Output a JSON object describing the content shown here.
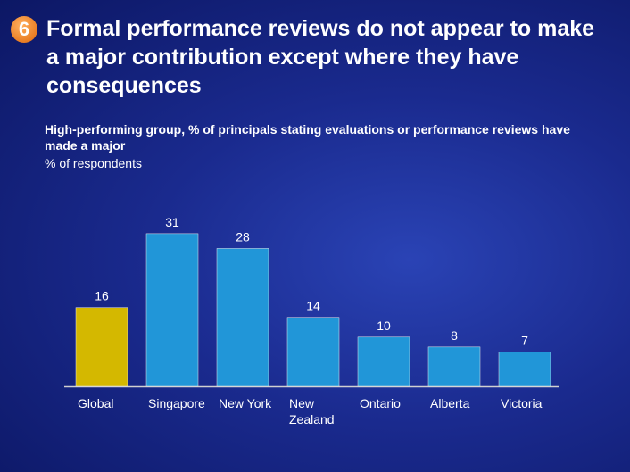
{
  "chart_data": {
    "type": "bar",
    "badge": "6",
    "title": "Formal performance reviews do not appear to make a major contribution except where they have consequences",
    "subtitle": "High-performing group, % of principals stating evaluations or performance reviews have made a major",
    "unit": "% of respondents",
    "categories": [
      "Global",
      "Singapore",
      "New York",
      "New Zealand",
      "Ontario",
      "Alberta",
      "Victoria"
    ],
    "values": [
      16,
      31,
      28,
      14,
      10,
      8,
      7
    ],
    "colors": [
      "#d4b800",
      "#2196d8",
      "#2196d8",
      "#2196d8",
      "#2196d8",
      "#2196d8",
      "#2196d8"
    ]
  }
}
